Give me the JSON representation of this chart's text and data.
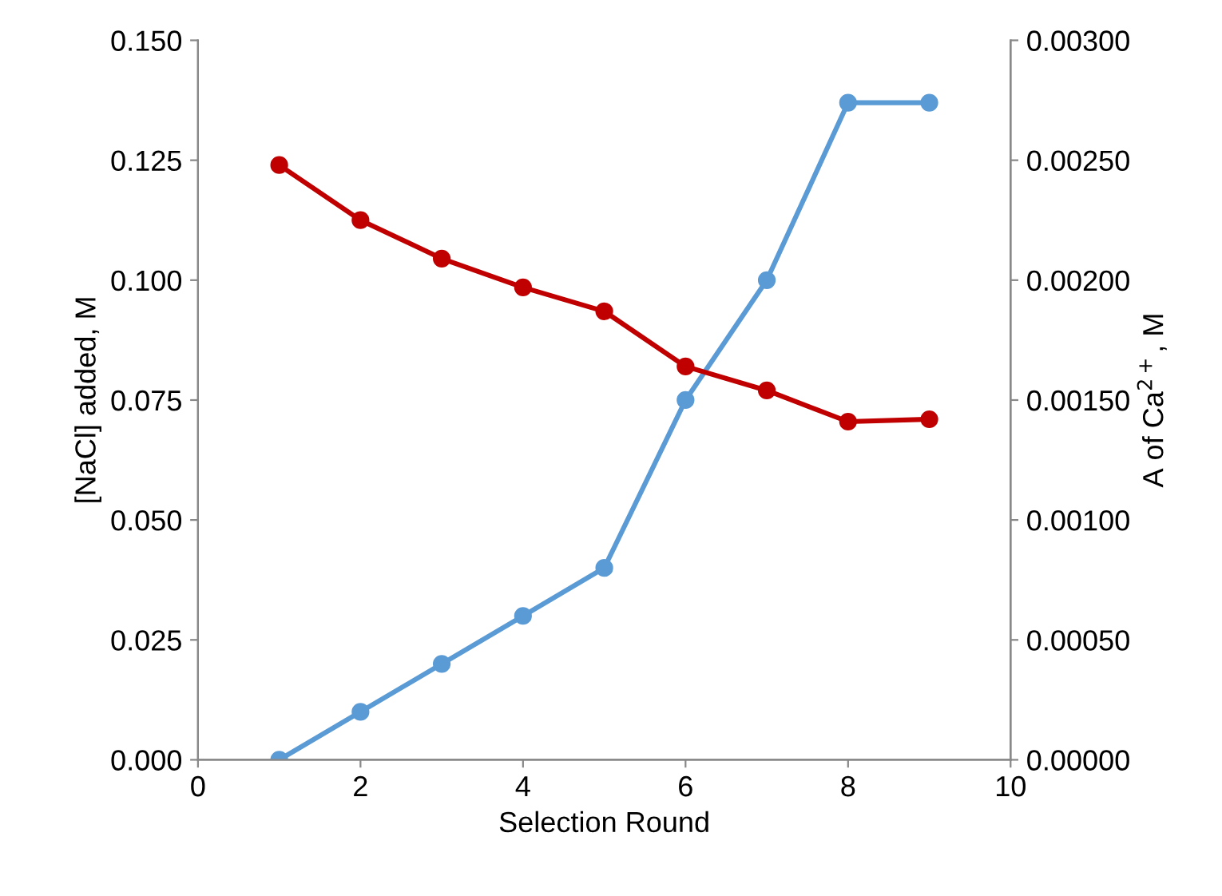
{
  "chart_data": {
    "type": "line",
    "xlabel": "Selection Round",
    "ylabel": "[NaCl] added, M",
    "y2label": "A of Ca$^{2+}$, M",
    "x": [
      1,
      2,
      3,
      4,
      5,
      6,
      7,
      8,
      9
    ],
    "series": [
      {
        "color": "#5b9bd5",
        "values": [
          0.0,
          0.01,
          0.02,
          0.03,
          0.04,
          0.075,
          0.1,
          0.137,
          0.137
        ]
      },
      {
        "color": "#c00000",
        "axis": "y2",
        "values": [
          0.00248,
          0.00225,
          0.00209,
          0.00197,
          0.00187,
          0.00164,
          0.00154,
          0.00141,
          0.00142
        ]
      }
    ],
    "xlim": [
      0,
      10
    ],
    "xticks": [
      0,
      2,
      4,
      6,
      8,
      10
    ],
    "ylim": [
      0,
      0.15
    ],
    "yticks": [
      {
        "value": 0,
        "label": "0.000"
      },
      {
        "value": 0.025,
        "label": "0.025"
      },
      {
        "value": 0.05,
        "label": "0.050"
      },
      {
        "value": 0.075,
        "label": "0.075"
      },
      {
        "value": 0.1,
        "label": "0.100"
      },
      {
        "value": 0.125,
        "label": "0.125"
      },
      {
        "value": 0.15,
        "label": "0.150"
      }
    ],
    "y2lim": [
      0,
      0.003
    ],
    "y2ticks": [
      {
        "value": 0,
        "label": "0.00000"
      },
      {
        "value": 0.0005,
        "label": "0.00050"
      },
      {
        "value": 0.001,
        "label": "0.00100"
      },
      {
        "value": 0.0015,
        "label": "0.00150"
      },
      {
        "value": 0.002,
        "label": "0.00200"
      },
      {
        "value": 0.0025,
        "label": "0.00250"
      },
      {
        "value": 0.003,
        "label": "0.00300"
      }
    ],
    "marker": "circle",
    "line_style": "solid",
    "grid": false,
    "legend": false
  }
}
